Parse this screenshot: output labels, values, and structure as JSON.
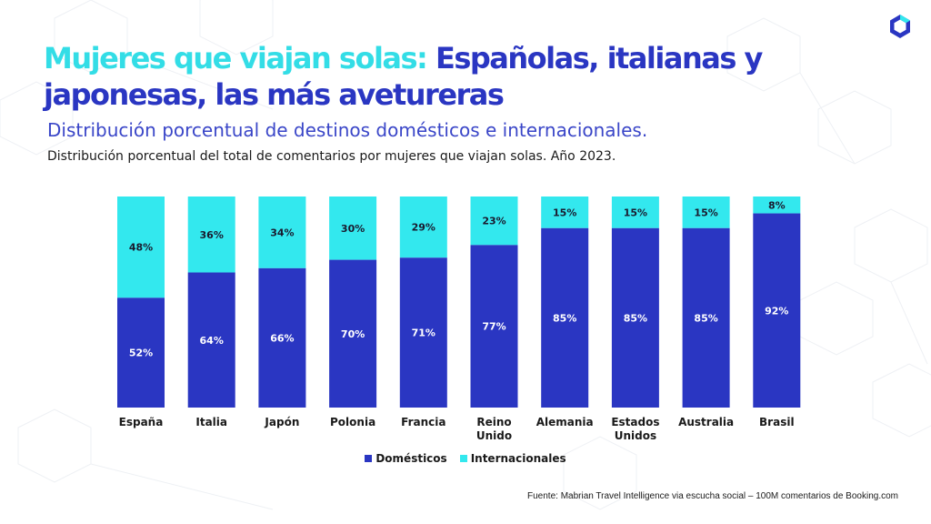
{
  "header": {
    "title_part1": "Mujeres que viajan solas:",
    "title_part2": "Españolas, italianas y japonesas, las más avetureras",
    "subtitle": "Distribución porcentual de destinos domésticos e internacionales.",
    "description": "Distribución porcentual del total de comentarios por mujeres que viajan solas. Año 2023."
  },
  "colors": {
    "domestic": "#2A36C2",
    "international": "#33E8EE",
    "title_accent": "#33DDE6",
    "title_main": "#2A36C2"
  },
  "logo": {
    "icon": "hexagon-logo-icon"
  },
  "chart_data": {
    "type": "bar",
    "stacked": true,
    "normalized": true,
    "ylim": [
      0,
      100
    ],
    "grid": false,
    "legend_position": "bottom",
    "categories": [
      [
        "España"
      ],
      [
        "Italia"
      ],
      [
        "Japón"
      ],
      [
        "Polonia"
      ],
      [
        "Francia"
      ],
      [
        "Reino",
        "Unido"
      ],
      [
        "Alemania"
      ],
      [
        "Estados",
        "Unidos"
      ],
      [
        "Australia"
      ],
      [
        "Brasil"
      ]
    ],
    "series": [
      {
        "name": "Domésticos",
        "values": [
          52,
          64,
          66,
          70,
          71,
          77,
          85,
          85,
          85,
          92
        ]
      },
      {
        "name": "Internacionales",
        "values": [
          48,
          36,
          34,
          30,
          29,
          23,
          15,
          15,
          15,
          8
        ]
      }
    ],
    "value_suffix": "%"
  },
  "footer": {
    "source": "Fuente: Mabrian Travel Intelligence via escucha social – 100M comentarios de Booking.com"
  }
}
